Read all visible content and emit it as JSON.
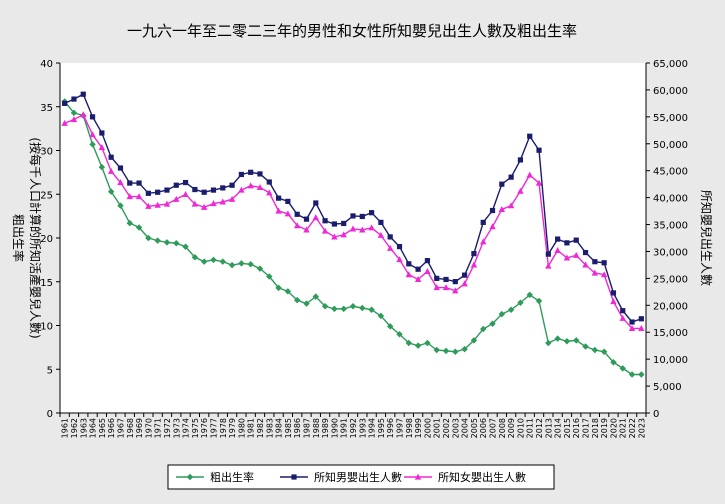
{
  "chart_data": {
    "type": "line",
    "title": "一九六一年至二零二三年的男性和女性所知嬰兒出生人數及粗出生率",
    "left_axis": {
      "label_lines": [
        "粗出生率",
        "(按每千人口計算的所知活產嬰兒人數)"
      ],
      "ylim": [
        0,
        40
      ],
      "ticks": [
        0,
        5,
        10,
        15,
        20,
        25,
        30,
        35,
        40
      ]
    },
    "right_axis": {
      "label": "所知嬰兒出生人數",
      "ylim": [
        0,
        65000
      ],
      "ticks": [
        0,
        5000,
        10000,
        15000,
        20000,
        25000,
        30000,
        35000,
        40000,
        45000,
        50000,
        55000,
        60000,
        65000
      ],
      "tick_labels": [
        "0",
        "5,000",
        "10,000",
        "15,000",
        "20,000",
        "25,000",
        "30,000",
        "35,000",
        "40,000",
        "45,000",
        "50,000",
        "55,000",
        "60,000",
        "65,000"
      ]
    },
    "x": [
      "1961",
      "1962",
      "1963",
      "1964",
      "1965",
      "1966",
      "1967",
      "1968",
      "1969",
      "1970",
      "1971",
      "1972",
      "1973",
      "1974",
      "1975",
      "1976",
      "1977",
      "1978",
      "1979",
      "1980",
      "1981",
      "1982",
      "1983",
      "1984",
      "1985",
      "1986",
      "1987",
      "1988",
      "1989",
      "1990",
      "1991",
      "1992",
      "1993",
      "1994",
      "1995",
      "1996",
      "1997",
      "1998",
      "1999",
      "2000",
      "2001",
      "2002",
      "2003",
      "2004",
      "2005",
      "2006",
      "2007",
      "2008",
      "2009",
      "2010",
      "2011",
      "2012",
      "2013",
      "2014",
      "2015",
      "2016",
      "2017",
      "2018",
      "2019",
      "2020",
      "2021",
      "2022",
      "2023"
    ],
    "series": [
      {
        "name": "粗出生率",
        "axis": "left",
        "color": "#2e9b5a",
        "marker": "diamond",
        "values": [
          35.6,
          34.3,
          34.0,
          30.7,
          28.1,
          25.3,
          23.7,
          21.7,
          21.2,
          20.0,
          19.7,
          19.5,
          19.4,
          19.0,
          17.8,
          17.3,
          17.5,
          17.3,
          16.9,
          17.1,
          17.0,
          16.5,
          15.6,
          14.3,
          13.9,
          12.9,
          12.5,
          13.3,
          12.2,
          11.9,
          11.9,
          12.2,
          12.0,
          11.8,
          11.1,
          9.9,
          9.0,
          8.0,
          7.7,
          8.0,
          7.2,
          7.1,
          7.0,
          7.3,
          8.3,
          9.6,
          10.2,
          11.3,
          11.8,
          12.6,
          13.5,
          12.8,
          8.0,
          8.5,
          8.2,
          8.3,
          7.6,
          7.2,
          7.0,
          5.8,
          5.1,
          4.4,
          4.4
        ]
      },
      {
        "name": "所知男嬰出生人數",
        "axis": "right",
        "color": "#1a1c6e",
        "marker": "square",
        "values": [
          57500,
          58300,
          59200,
          55000,
          52000,
          47500,
          45500,
          42700,
          42700,
          40800,
          41000,
          41400,
          42300,
          42800,
          41500,
          41000,
          41400,
          41800,
          42300,
          44300,
          44700,
          44400,
          42900,
          39900,
          39300,
          36900,
          36000,
          39000,
          35700,
          35100,
          35200,
          36600,
          36500,
          37200,
          35400,
          32700,
          30900,
          27700,
          26700,
          28300,
          25000,
          24800,
          24400,
          25600,
          29600,
          35400,
          37600,
          42500,
          43800,
          47000,
          51400,
          48800,
          29500,
          32300,
          31600,
          32100,
          29800,
          28100,
          27900,
          22300,
          19000,
          16900,
          17500
        ]
      },
      {
        "name": "所知女嬰出生人數",
        "axis": "right",
        "color": "#ef28d6",
        "marker": "triangle",
        "values": [
          53800,
          54500,
          55400,
          51700,
          49300,
          44900,
          42800,
          40200,
          40200,
          38400,
          38600,
          38800,
          39700,
          40600,
          38800,
          38200,
          38900,
          39200,
          39700,
          41400,
          42200,
          41900,
          40900,
          37500,
          37000,
          34800,
          34000,
          36300,
          33800,
          32700,
          33100,
          34200,
          34000,
          34400,
          33000,
          30600,
          28500,
          25700,
          24800,
          26300,
          23300,
          23300,
          22700,
          24000,
          27500,
          31800,
          34600,
          37800,
          38500,
          41200,
          44200,
          42700,
          27300,
          30200,
          28800,
          29300,
          27500,
          26000,
          25700,
          20700,
          17600,
          15700,
          15700
        ]
      }
    ],
    "grid": false,
    "legend_position": "bottom"
  }
}
